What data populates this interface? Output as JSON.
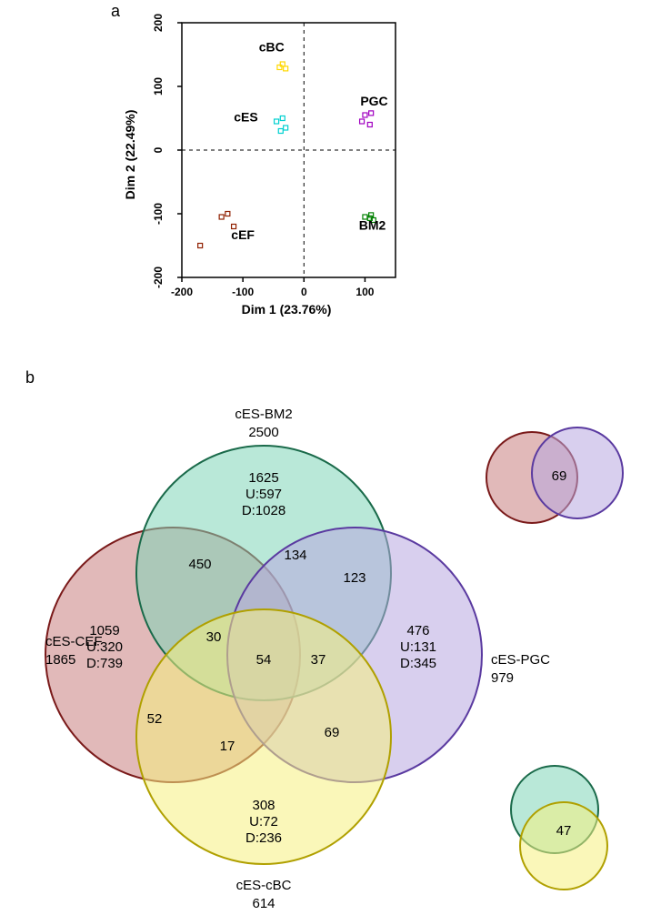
{
  "panel_labels": {
    "a": "a",
    "b": "b"
  },
  "scatter": {
    "type": "scatter",
    "xlabel": "Dim 1 (23.76%)",
    "ylabel": "Dim 2 (22.49%)",
    "label_fontsize": 14,
    "label_fontweight": "bold",
    "tick_fontsize": 12,
    "tick_fontweight": "bold",
    "xlim": [
      -200,
      150
    ],
    "ylim": [
      -200,
      200
    ],
    "xticks": [
      -200,
      -100,
      0,
      100
    ],
    "yticks": [
      -200,
      -100,
      0,
      100,
      200
    ],
    "axis_color": "#000000",
    "zero_line_color": "#000000",
    "zero_line_dash": "4,4",
    "background_color": "#ffffff",
    "marker_style": "open-square",
    "marker_size": 5,
    "marker_stroke": 1.2,
    "groups": [
      {
        "name": "cBC",
        "label": "cBC",
        "color": "#ffd800",
        "label_pos": [
          -53,
          155
        ],
        "points": [
          [
            -40,
            130
          ],
          [
            -30,
            128
          ],
          [
            -35,
            135
          ]
        ]
      },
      {
        "name": "cES",
        "label": "cES",
        "color": "#00d0d0",
        "label_pos": [
          -95,
          45
        ],
        "points": [
          [
            -45,
            45
          ],
          [
            -35,
            50
          ],
          [
            -30,
            35
          ],
          [
            -38,
            30
          ]
        ]
      },
      {
        "name": "PGC",
        "label": "PGC",
        "color": "#a000c0",
        "label_pos": [
          115,
          70
        ],
        "points": [
          [
            100,
            55
          ],
          [
            110,
            58
          ],
          [
            95,
            45
          ],
          [
            108,
            40
          ]
        ]
      },
      {
        "name": "cEF",
        "label": "cEF",
        "color": "#902000",
        "label_pos": [
          -100,
          -140
        ],
        "points": [
          [
            -135,
            -105
          ],
          [
            -125,
            -100
          ],
          [
            -115,
            -120
          ],
          [
            -170,
            -150
          ]
        ]
      },
      {
        "name": "BM2",
        "label": "BM2",
        "color": "#008000",
        "label_pos": [
          112,
          -125
        ],
        "points": [
          [
            100,
            -105
          ],
          [
            108,
            -107
          ],
          [
            114,
            -110
          ],
          [
            110,
            -102
          ]
        ]
      }
    ]
  },
  "venn": {
    "type": "venn-4",
    "font_color": "#000000",
    "label_fontsize": 15,
    "value_fontsize": 15,
    "circle_opacity": 0.55,
    "circle_stroke_width": 2,
    "sets": {
      "A": {
        "name": "cES-CEF",
        "total": "1865",
        "fill": "#c98080",
        "stroke": "#7a1a1a",
        "label_lines": [
          "cES-CEF",
          "1865"
        ],
        "only": {
          "count": "1059",
          "up": "U:320",
          "down": "D:739"
        }
      },
      "B": {
        "name": "cES-BM2",
        "total": "2500",
        "fill": "#7fd6b8",
        "stroke": "#1a6a4a",
        "label_lines": [
          "cES-BM2",
          "2500"
        ],
        "only": {
          "count": "1625",
          "up": "U:597",
          "down": "D:1028"
        }
      },
      "C": {
        "name": "cES-PGC",
        "total": "979",
        "fill": "#b8a8e0",
        "stroke": "#5a3aa0",
        "label_lines": [
          "cES-PGC",
          "979"
        ],
        "only": {
          "count": "476",
          "up": "U:131",
          "down": "D:345"
        }
      },
      "D": {
        "name": "cES-cBC",
        "total": "614",
        "fill": "#f5f080",
        "stroke": "#b0a000",
        "label_lines": [
          "cES-cBC",
          "614"
        ],
        "only": {
          "count": "308",
          "up": "U:72",
          "down": "D:236"
        }
      }
    },
    "intersections": {
      "AB": "450",
      "BC": "134",
      "BD_small": "123",
      "AD": "52",
      "ABD": "30",
      "ABCD": "54",
      "BCD": "37",
      "AD2": "17",
      "CD": "69"
    },
    "side_pairs": {
      "AC": {
        "value": "69",
        "colors": {
          "left_fill": "#c98080",
          "left_stroke": "#7a1a1a",
          "right_fill": "#b8a8e0",
          "right_stroke": "#5a3aa0"
        }
      },
      "BD": {
        "value": "47",
        "colors": {
          "top_fill": "#7fd6b8",
          "top_stroke": "#1a6a4a",
          "bottom_fill": "#f5f080",
          "bottom_stroke": "#b0a000"
        }
      }
    }
  }
}
